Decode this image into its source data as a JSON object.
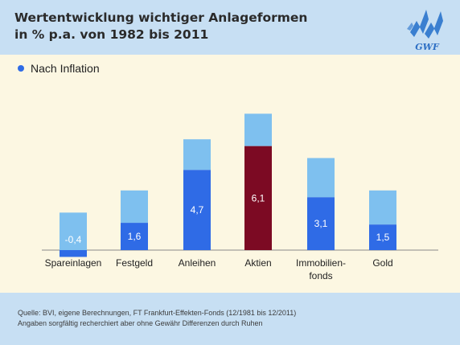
{
  "title": {
    "line1": "Wertentwicklung wichtiger Anlageformen",
    "line2": "in % p.a. von 1982 bis 2011"
  },
  "logo": {
    "text": "GWF",
    "icon": "gwf-logo"
  },
  "legend": {
    "label": "Nach Inflation"
  },
  "colors": {
    "after_inflation": "#2f6be6",
    "nominal": "#7ec0ef",
    "highlight": "#7c0a23",
    "background": "#c7dff3",
    "panel": "#fcf7e2"
  },
  "chart_data": {
    "type": "bar",
    "title": "Wertentwicklung wichtiger Anlageformen in % p.a. von 1982 bis 2011",
    "categories": [
      [
        "Spareinlagen"
      ],
      [
        "Festgeld"
      ],
      [
        "Anleihen"
      ],
      [
        "Aktien"
      ],
      [
        "Immobilien-",
        "fonds"
      ],
      [
        "Gold"
      ]
    ],
    "series": [
      {
        "name": "Nach Inflation",
        "values": [
          -0.4,
          1.6,
          4.7,
          6.1,
          3.1,
          1.5
        ],
        "labels": [
          "-0,4",
          "1,6",
          "4,7",
          "6,1",
          "3,1",
          "1,5"
        ]
      },
      {
        "values": [
          2.2,
          3.5,
          6.5,
          8.0,
          5.4,
          3.5
        ]
      }
    ],
    "highlight_category": "Aktien",
    "stacked_overlay": true,
    "ylim": [
      -0.5,
      8.5
    ],
    "grid": false,
    "legend_position": "top-left"
  },
  "footer": {
    "line1": "Quelle: BVI, eigene Berechnungen, FT Frankfurt-Effekten-Fonds (12/1981 bis 12/2011)",
    "line2": "Angaben sorgfältig recherchiert aber ohne Gewähr Differenzen durch Ruhen"
  }
}
